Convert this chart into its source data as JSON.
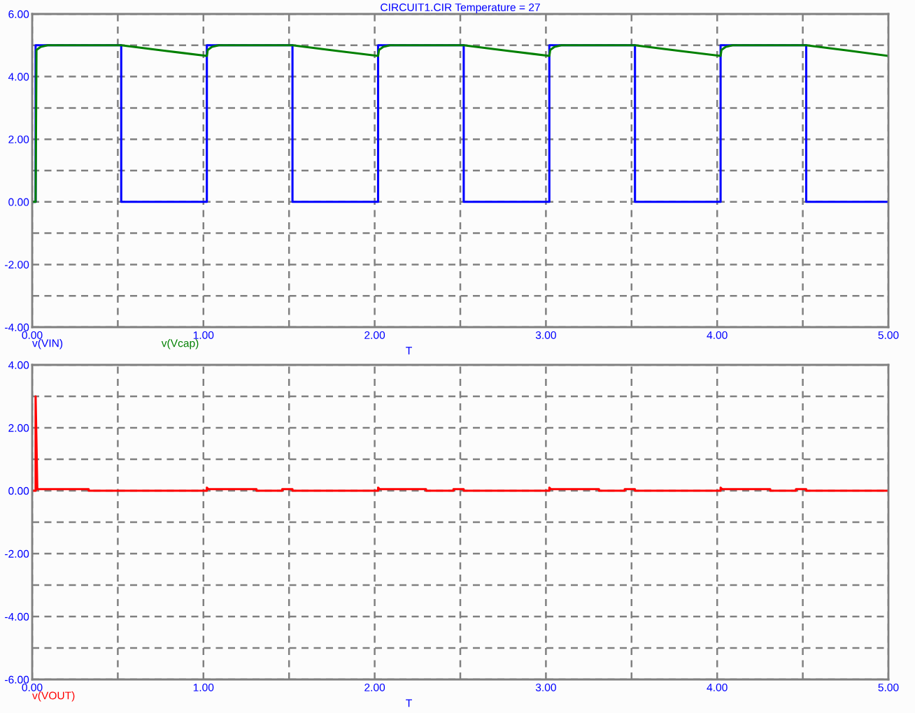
{
  "chart_data": [
    {
      "type": "line",
      "title": "CIRCUIT1.CIR Temperature = 27",
      "xlabel": "T",
      "xlim": [
        0,
        5
      ],
      "ylim": [
        -4,
        6
      ],
      "xticks": [
        {
          "value": 0,
          "label": "0.00"
        },
        {
          "value": 0.5,
          "label": null
        },
        {
          "value": 1,
          "label": "1.00"
        },
        {
          "value": 1.5,
          "label": null
        },
        {
          "value": 2,
          "label": "2.00"
        },
        {
          "value": 2.5,
          "label": null
        },
        {
          "value": 3,
          "label": "3.00"
        },
        {
          "value": 3.5,
          "label": null
        },
        {
          "value": 4,
          "label": "4.00"
        },
        {
          "value": 4.5,
          "label": null
        },
        {
          "value": 5,
          "label": "5.00"
        }
      ],
      "yticks": [
        {
          "value": -4,
          "label": "-4.00"
        },
        {
          "value": -3,
          "label": null
        },
        {
          "value": -2,
          "label": "-2.00"
        },
        {
          "value": -1,
          "label": null
        },
        {
          "value": 0,
          "label": "0.00"
        },
        {
          "value": 1,
          "label": null
        },
        {
          "value": 2,
          "label": "2.00"
        },
        {
          "value": 3,
          "label": null
        },
        {
          "value": 4,
          "label": "4.00"
        },
        {
          "value": 5,
          "label": null
        },
        {
          "value": 6,
          "label": "6.00"
        }
      ],
      "grid": true,
      "legend": "bottom left",
      "series": [
        {
          "name": "v(VIN)",
          "color": "#0000ff",
          "x": [
            0,
            0.02,
            0.02,
            0.52,
            0.52,
            1.02,
            1.02,
            1.52,
            1.52,
            2.02,
            2.02,
            2.52,
            2.52,
            3.02,
            3.02,
            3.52,
            3.52,
            4.02,
            4.02,
            4.52,
            4.52,
            5.0
          ],
          "values": [
            0,
            0,
            5,
            5,
            0,
            0,
            5,
            5,
            0,
            0,
            5,
            5,
            0,
            0,
            5,
            5,
            0,
            0,
            5,
            5,
            0,
            0
          ]
        },
        {
          "name": "v(Vcap)",
          "color": "#008000",
          "x": [
            0,
            0.02,
            0.025,
            0.05,
            0.09,
            0.52,
            0.77,
            1.02,
            1.025,
            1.05,
            1.09,
            1.52,
            1.77,
            2.02,
            2.025,
            2.05,
            2.09,
            2.52,
            2.77,
            3.02,
            3.025,
            3.05,
            3.09,
            3.52,
            3.77,
            4.02,
            4.025,
            4.05,
            4.09,
            4.52,
            4.77,
            5.0
          ],
          "values": [
            0,
            0,
            4.85,
            4.95,
            5.0,
            5.0,
            4.83,
            4.66,
            4.85,
            4.95,
            5.0,
            5.0,
            4.83,
            4.66,
            4.85,
            4.95,
            5.0,
            5.0,
            4.83,
            4.66,
            4.85,
            4.95,
            5.0,
            5.0,
            4.83,
            4.66,
            4.85,
            4.95,
            5.0,
            5.0,
            4.83,
            4.66
          ]
        }
      ]
    },
    {
      "type": "line",
      "xlabel": "T",
      "xlim": [
        0,
        5
      ],
      "ylim": [
        -6,
        4
      ],
      "xticks": [
        {
          "value": 0,
          "label": "0.00"
        },
        {
          "value": 0.5,
          "label": null
        },
        {
          "value": 1,
          "label": "1.00"
        },
        {
          "value": 1.5,
          "label": null
        },
        {
          "value": 2,
          "label": "2.00"
        },
        {
          "value": 2.5,
          "label": null
        },
        {
          "value": 3,
          "label": "3.00"
        },
        {
          "value": 3.5,
          "label": null
        },
        {
          "value": 4,
          "label": "4.00"
        },
        {
          "value": 4.5,
          "label": null
        },
        {
          "value": 5,
          "label": "5.00"
        }
      ],
      "yticks": [
        {
          "value": -6,
          "label": "-6.00"
        },
        {
          "value": -5,
          "label": null
        },
        {
          "value": -4,
          "label": "-4.00"
        },
        {
          "value": -3,
          "label": null
        },
        {
          "value": -2,
          "label": "-2.00"
        },
        {
          "value": -1,
          "label": null
        },
        {
          "value": 0,
          "label": "0.00"
        },
        {
          "value": 1,
          "label": null
        },
        {
          "value": 2,
          "label": "2.00"
        },
        {
          "value": 3,
          "label": null
        },
        {
          "value": 4,
          "label": "4.00"
        }
      ],
      "grid": true,
      "legend": "bottom left",
      "series": [
        {
          "name": "v(VOUT)",
          "color": "#ff0000",
          "x": [
            0,
            0.02,
            0.02,
            0.03,
            0.33,
            0.33,
            1.02,
            1.02,
            1.03,
            1.31,
            1.31,
            1.46,
            1.46,
            1.52,
            1.52,
            2.02,
            2.02,
            2.03,
            2.3,
            2.3,
            2.46,
            2.46,
            2.52,
            2.52,
            3.02,
            3.02,
            3.03,
            3.31,
            3.31,
            3.46,
            3.46,
            3.52,
            3.52,
            4.02,
            4.02,
            4.03,
            4.31,
            4.31,
            4.46,
            4.46,
            4.52,
            4.52,
            5.0
          ],
          "values": [
            0,
            0,
            3.0,
            0.05,
            0.05,
            0,
            0,
            0.1,
            0.05,
            0.05,
            0,
            0,
            0.05,
            0.05,
            0,
            0,
            0.1,
            0.05,
            0.05,
            0,
            0,
            0.05,
            0.05,
            0,
            0,
            0.1,
            0.05,
            0.05,
            0,
            0,
            0.05,
            0.05,
            0,
            0,
            0.1,
            0.05,
            0.05,
            0,
            0,
            0.05,
            0.05,
            0,
            0
          ]
        }
      ]
    }
  ]
}
